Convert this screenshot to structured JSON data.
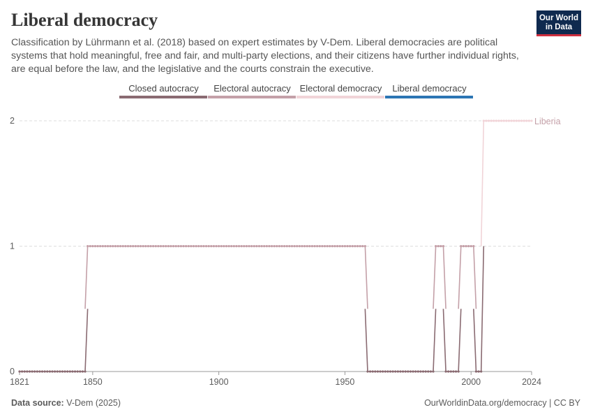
{
  "header": {
    "title": "Liberal democracy",
    "subtitle": "Classification by Lührmann et al. (2018) based on expert estimates by V-Dem. Liberal democracies are political systems that hold meaningful, free and fair, and multi-party elections, and their citizens have further individual rights, are equal before the law, and the legislative and the courts constrain the executive."
  },
  "logo": {
    "line1": "Our World",
    "line2": "in Data"
  },
  "footer": {
    "source_label": "Data source:",
    "source_value": "V-Dem (2025)",
    "link": "OurWorldinData.org/democracy | CC BY"
  },
  "colors": {
    "closed_autocracy": "#8a6b72",
    "electoral_autocracy": "#c4a0a8",
    "electoral_democracy": "#f1d4d8",
    "liberal_democracy": "#2c75b4",
    "grid": "#dddddd"
  },
  "chart_data": {
    "type": "line",
    "title": "Liberal democracy",
    "legend_position": "top",
    "legend": [
      "Closed autocracy",
      "Electoral autocracy",
      "Electoral democracy",
      "Liberal democracy"
    ],
    "xlim": [
      1821,
      2024
    ],
    "ylim": [
      0,
      2
    ],
    "x_ticks": [
      "1821",
      "1850",
      "1900",
      "1950",
      "2000",
      "2024"
    ],
    "y_ticks": [
      "0",
      "1",
      "2"
    ],
    "grid": true,
    "series": [
      {
        "name": "Liberia",
        "segments": [
          {
            "start": 1821,
            "end": 1847,
            "value": 0
          },
          {
            "start": 1848,
            "end": 1958,
            "value": 1
          },
          {
            "start": 1959,
            "end": 1985,
            "value": 0
          },
          {
            "start": 1986,
            "end": 1989,
            "value": 1
          },
          {
            "start": 1990,
            "end": 1995,
            "value": 0
          },
          {
            "start": 1996,
            "end": 2001,
            "value": 1
          },
          {
            "start": 2002,
            "end": 2004,
            "value": 0
          },
          {
            "start": 2005,
            "end": 2024,
            "value": 2
          }
        ]
      }
    ]
  }
}
